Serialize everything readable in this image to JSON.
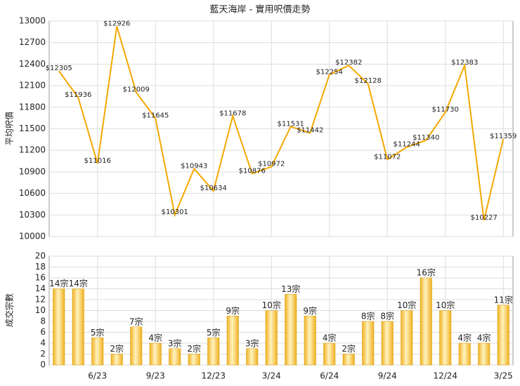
{
  "chart_data": [
    {
      "type": "line",
      "title": "藍天海岸 - 實用呎價走勢",
      "y_label": "平均呎價",
      "color": "#f5a800",
      "values": [
        12305,
        11936,
        11016,
        12926,
        12009,
        11645,
        10301,
        10943,
        10634,
        11678,
        10876,
        10972,
        11531,
        11442,
        12254,
        12382,
        12128,
        11072,
        11244,
        11340,
        11730,
        12383,
        10227,
        11359
      ],
      "value_labels": [
        "$12305",
        "$11936",
        "$11016",
        "$12926",
        "$12009",
        "$11645",
        "$10301",
        "$10943",
        "$10634",
        "$11678",
        "$10876",
        "$10972",
        "$11531",
        "$11442",
        "$12254",
        "$12382",
        "$12128",
        "$11072",
        "$11244",
        "$11340",
        "$11730",
        "$12383",
        "$10227",
        "$11359"
      ],
      "ylim": [
        10000,
        13000
      ],
      "yticks": [
        10000,
        10300,
        10600,
        10900,
        11200,
        11500,
        11800,
        12100,
        12400,
        12700,
        13000
      ],
      "grid": true
    },
    {
      "type": "bar",
      "y_label": "成交宗數",
      "color": "#f0b020",
      "categories": [
        null,
        null,
        "6/23",
        null,
        null,
        "9/23",
        null,
        null,
        "12/23",
        null,
        null,
        "3/24",
        null,
        null,
        "6/24",
        null,
        null,
        "9/24",
        null,
        null,
        "12/24",
        null,
        null,
        "3/25"
      ],
      "values": [
        14,
        14,
        5,
        2,
        7,
        4,
        3,
        2,
        5,
        9,
        3,
        10,
        13,
        9,
        4,
        2,
        8,
        8,
        10,
        16,
        10,
        4,
        4,
        11
      ],
      "value_labels": [
        "14宗",
        "14宗",
        "5宗",
        "2宗",
        "7宗",
        "4宗",
        "3宗",
        "2宗",
        "5宗",
        "9宗",
        "3宗",
        "10宗",
        "13宗",
        "9宗",
        "4宗",
        "2宗",
        "8宗",
        "8宗",
        "10宗",
        "16宗",
        "10宗",
        "4宗",
        "4宗",
        "11宗"
      ],
      "ylim": [
        0,
        20
      ],
      "yticks": [
        0,
        2,
        4,
        6,
        8,
        10,
        12,
        14,
        16,
        18,
        20
      ],
      "grid": true
    }
  ]
}
